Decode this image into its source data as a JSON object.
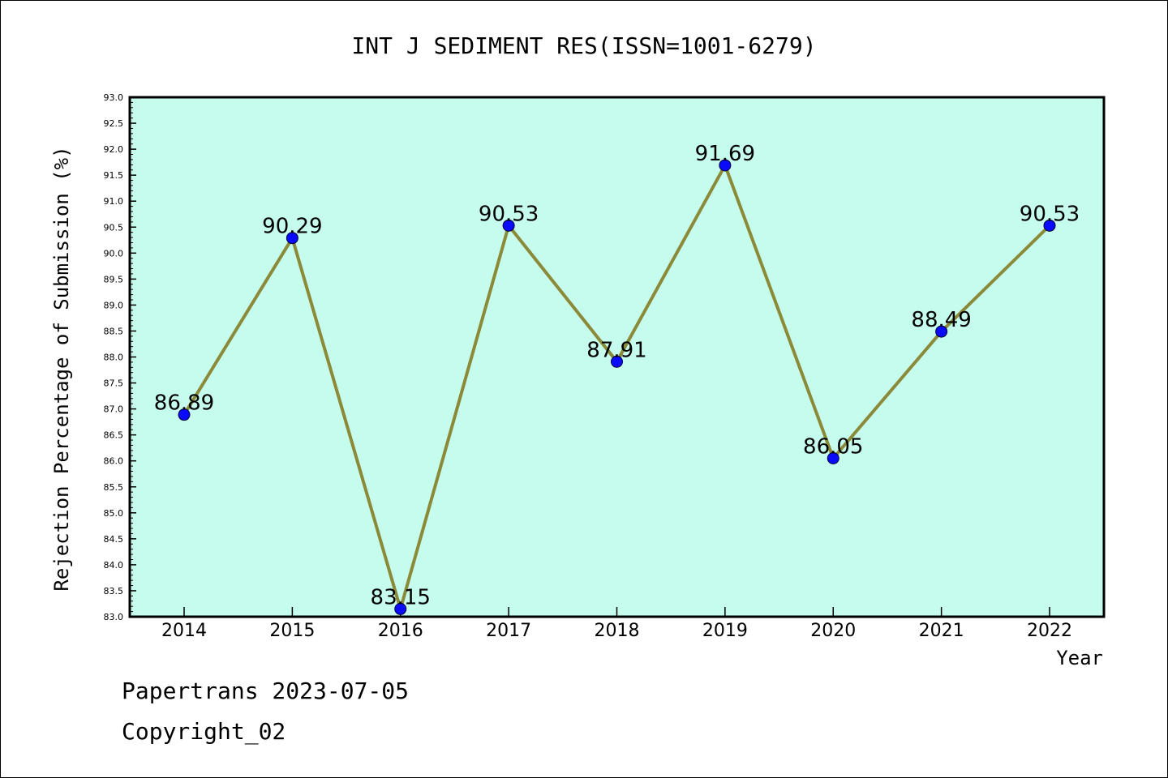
{
  "chart_data": {
    "type": "line",
    "title": "INT J SEDIMENT RES(ISSN=1001-6279)",
    "xlabel": "Year",
    "ylabel": "Rejection Percentage of Submission (%)",
    "categories": [
      "2014",
      "2015",
      "2016",
      "2017",
      "2018",
      "2019",
      "2020",
      "2021",
      "2022"
    ],
    "series": [
      {
        "values": [
          86.89,
          90.29,
          83.15,
          90.53,
          87.91,
          91.69,
          86.05,
          88.49,
          90.53
        ],
        "data_labels": [
          "86.89",
          "90.29",
          "83.15",
          "90.53",
          "87.91",
          "91.69",
          "86.05",
          "88.49",
          "90.53"
        ]
      }
    ],
    "ylim": [
      83.0,
      93.0
    ],
    "yticks": [
      "83.0",
      "83.5",
      "84.0",
      "84.5",
      "85.0",
      "85.5",
      "86.0",
      "86.5",
      "87.0",
      "87.5",
      "88.0",
      "88.5",
      "89.0",
      "89.5",
      "90.0",
      "90.5",
      "91.0",
      "91.5",
      "92.0",
      "92.5",
      "93.0"
    ],
    "grid": false,
    "colors": {
      "plot_background": "#c6fcee",
      "line": "#8b8a38",
      "marker": "#0a0aff"
    }
  },
  "footer": {
    "line1": "Papertrans 2023-07-05",
    "line2": "Copyright_02"
  }
}
